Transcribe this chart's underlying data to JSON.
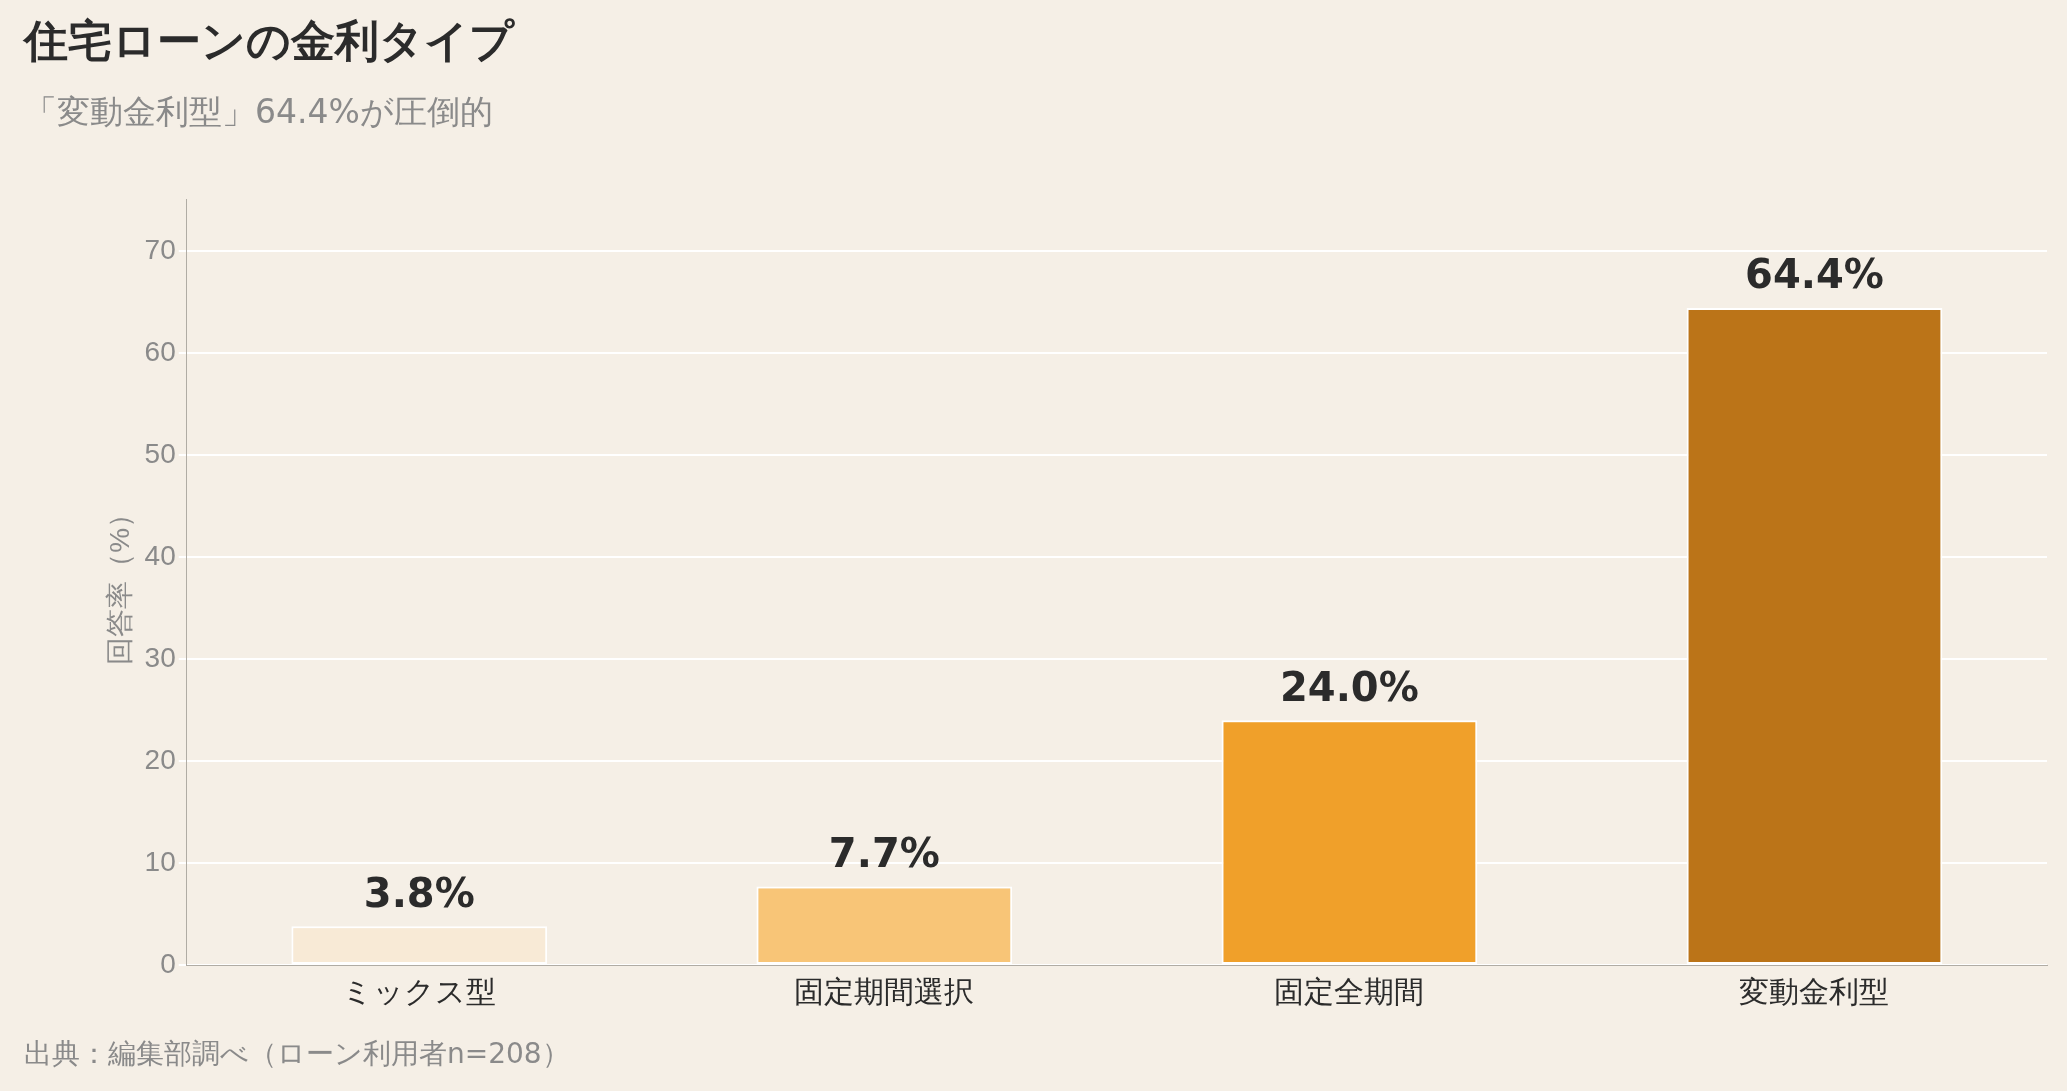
{
  "chart_data": {
    "type": "bar",
    "title": "住宅ローンの金利タイプ",
    "subtitle": "「変動金利型」64.4%が圧倒的",
    "ylabel": "回答率（%）",
    "categories": [
      "ミックス型",
      "固定期間選択",
      "固定全期間",
      "変動金利型"
    ],
    "values": [
      3.8,
      7.7,
      24.0,
      64.4
    ],
    "colors": [
      "#f8ead6",
      "#f8c577",
      "#f0a02a",
      "#bb7418"
    ],
    "value_labels": [
      "3.8%",
      "7.7%",
      "24.0%",
      "64.4%"
    ],
    "ylim": [
      0,
      75
    ],
    "yticks": [
      0,
      10,
      20,
      30,
      40,
      50,
      60,
      70
    ],
    "grid": "y",
    "legend": false,
    "annotations": [
      "出典：編集部調べ（ローン利用者n=208）"
    ]
  }
}
